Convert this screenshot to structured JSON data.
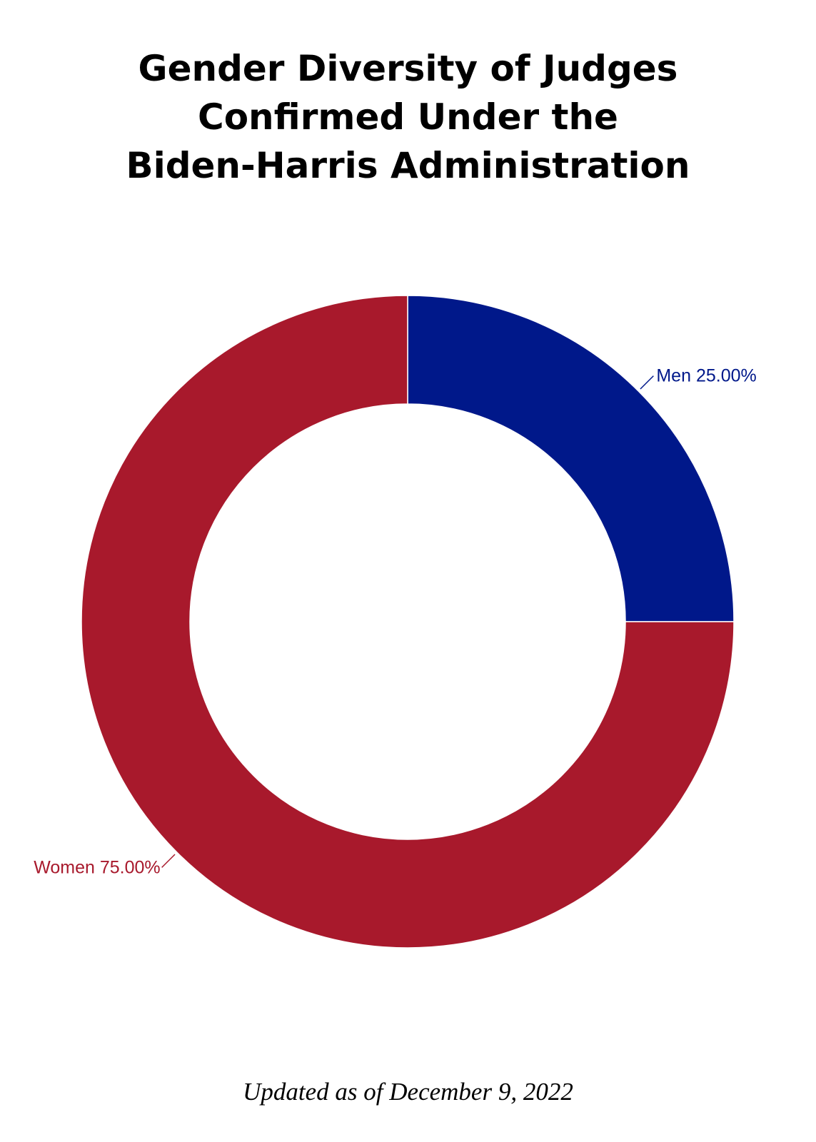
{
  "chart_data": {
    "type": "pie",
    "variant": "donut",
    "title_lines": [
      "Gender Diversity of Judges",
      "Confirmed Under the",
      "Biden-Harris Administration"
    ],
    "slices": [
      {
        "name": "Men",
        "value": 25.0,
        "label": "Men 25.00%",
        "color": "#00188a"
      },
      {
        "name": "Women",
        "value": 75.0,
        "label": "Women 75.00%",
        "color": "#a8192c"
      }
    ],
    "footnote": "Updated as of December 9, 2022"
  }
}
